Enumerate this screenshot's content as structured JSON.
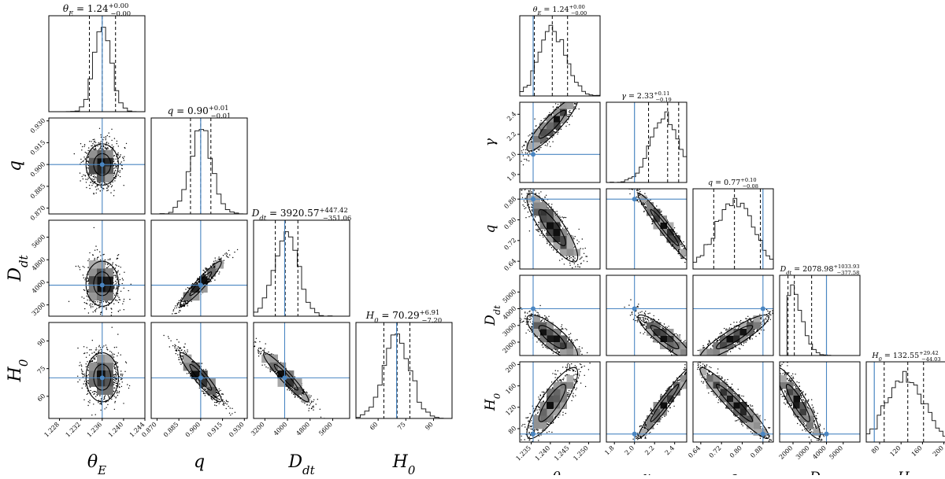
{
  "colors": {
    "truth": "#4a86c2",
    "hist": "#222222",
    "density_dark": "#111111",
    "density_light": "#d8d8d8",
    "quantile": "#000000",
    "background": "#ffffff"
  },
  "chart_data": [
    {
      "type": "corner",
      "params": [
        {
          "label": "θ_E",
          "range": [
            1.226,
            1.244
          ],
          "ticks": [
            "1.228",
            "1.232",
            "1.236",
            "1.240",
            "1.244"
          ],
          "tick_values": [
            1.228,
            1.232,
            1.236,
            1.24,
            1.244
          ],
          "truth": 1.236,
          "title": {
            "lhs": "θ_E = ",
            "value": "1.24",
            "plus": "+0.00",
            "minus": "−0.00"
          },
          "q": [
            1.2336,
            1.236,
            1.2385
          ],
          "mean": 1.236,
          "sd": 0.0016
        },
        {
          "label": "q",
          "range": [
            0.866,
            0.932
          ],
          "ticks": [
            "0.870",
            "0.885",
            "0.900",
            "0.915",
            "0.930"
          ],
          "tick_values": [
            0.87,
            0.885,
            0.9,
            0.915,
            0.93
          ],
          "ticks_left": [
            "0.870",
            "0.885",
            "0.900",
            "0.915",
            "0.930"
          ],
          "truth": 0.9,
          "title": {
            "lhs": "q = ",
            "value": "0.90",
            "plus": "+0.01",
            "minus": "−0.01"
          },
          "q": [
            0.893,
            0.9,
            0.907
          ],
          "mean": 0.9,
          "sd": 0.0075
        },
        {
          "label": "D_dt",
          "range": [
            2800,
            6200
          ],
          "ticks": [
            "3200",
            "4000",
            "4800",
            "5600"
          ],
          "tick_values": [
            3200,
            4000,
            4800,
            5600
          ],
          "ticks_left": [
            "3200",
            "4000",
            "4800",
            "5600"
          ],
          "truth": 3900,
          "title": {
            "lhs": "D_dt = ",
            "value": "3920.57",
            "plus": "+447.42",
            "minus": "−351.06"
          },
          "q": [
            3570,
            3920,
            4368
          ],
          "mean": 3950,
          "sd": 420
        },
        {
          "label": "H_0",
          "range": [
            48,
            100
          ],
          "ticks": [
            "60",
            "75",
            "90"
          ],
          "tick_values": [
            60,
            75,
            90
          ],
          "ticks_left": [
            "60",
            "75",
            "90"
          ],
          "truth": 70,
          "title": {
            "lhs": "H_0 = ",
            "value": "70.29",
            "plus": "+6.91",
            "minus": "−7.20"
          },
          "q": [
            63.1,
            70.3,
            77.2
          ],
          "mean": 70.3,
          "sd": 7.0
        }
      ],
      "correlations": [
        [
          0,
          1,
          0.0
        ],
        [
          0,
          2,
          0.0
        ],
        [
          0,
          3,
          0.0
        ],
        [
          1,
          2,
          0.95
        ],
        [
          1,
          3,
          -0.93
        ],
        [
          2,
          3,
          -0.95
        ]
      ]
    },
    {
      "type": "corner",
      "params": [
        {
          "label": "θ_E",
          "range": [
            1.232,
            1.253
          ],
          "ticks": [
            "1.235",
            "1.240",
            "1.245",
            "1.250"
          ],
          "tick_values": [
            1.235,
            1.24,
            1.245,
            1.25
          ],
          "truth": 1.2355,
          "title": {
            "lhs": "θ_E = ",
            "value": "1.24",
            "plus": "+0.00",
            "minus": "−0.00"
          },
          "q": [
            1.2358,
            1.2405,
            1.2445
          ],
          "mean": 1.2405,
          "sd": 0.0035
        },
        {
          "label": "γ",
          "range": [
            1.72,
            2.52
          ],
          "ticks": [
            "1.8",
            "2.0",
            "2.2",
            "2.4"
          ],
          "tick_values": [
            1.8,
            2.0,
            2.2,
            2.4
          ],
          "ticks_left": [
            "1.8",
            "2.0",
            "2.2",
            "2.4"
          ],
          "truth": 2.0,
          "title": {
            "lhs": "γ = ",
            "value": "2.33",
            "plus": "+0.11",
            "minus": "−0.19"
          },
          "q": [
            2.14,
            2.33,
            2.44
          ],
          "mean": 2.3,
          "sd": 0.14
        },
        {
          "label": "q",
          "range": [
            0.61,
            0.92
          ],
          "ticks": [
            "0.64",
            "0.72",
            "0.80",
            "0.88"
          ],
          "tick_values": [
            0.64,
            0.72,
            0.8,
            0.88
          ],
          "ticks_left": [
            "0.64",
            "0.72",
            "0.80",
            "0.88"
          ],
          "truth": 0.88,
          "title": {
            "lhs": "q = ",
            "value": "0.77",
            "plus": "+0.10",
            "minus": "−0.08"
          },
          "q": [
            0.69,
            0.77,
            0.87
          ],
          "mean": 0.77,
          "sd": 0.07
        },
        {
          "label": "D_dt",
          "range": [
            1200,
            6000
          ],
          "ticks": [
            "2000",
            "3000",
            "4000",
            "5000"
          ],
          "tick_values": [
            2000,
            3000,
            4000,
            5000
          ],
          "ticks_left": [
            "2000",
            "3000",
            "4000",
            "5000"
          ],
          "truth": 4000,
          "title": {
            "lhs": "D_dt = ",
            "value": "2078.98",
            "plus": "+1033.93",
            "minus": "−377.58"
          },
          "q": [
            1700,
            2079,
            3113
          ],
          "mean": 2300,
          "sd": 700
        },
        {
          "label": "H_0",
          "range": [
            55,
            205
          ],
          "ticks": [
            "80",
            "120",
            "160",
            "200"
          ],
          "tick_values": [
            80,
            120,
            160,
            200
          ],
          "ticks_left": [
            "80",
            "120",
            "160",
            "200"
          ],
          "truth": 70,
          "title": {
            "lhs": "H_0 = ",
            "value": "132.55",
            "plus": "+29.42",
            "minus": "−44.03"
          },
          "q": [
            88.5,
            132.55,
            162.0
          ],
          "mean": 128,
          "sd": 35
        }
      ],
      "correlations": [
        [
          0,
          1,
          0.9
        ],
        [
          0,
          2,
          -0.85
        ],
        [
          0,
          3,
          -0.8
        ],
        [
          0,
          4,
          0.85
        ],
        [
          1,
          2,
          -0.97
        ],
        [
          1,
          3,
          -0.9
        ],
        [
          1,
          4,
          0.97
        ],
        [
          2,
          3,
          0.9
        ],
        [
          2,
          4,
          -0.95
        ],
        [
          3,
          4,
          -0.9
        ]
      ]
    }
  ]
}
